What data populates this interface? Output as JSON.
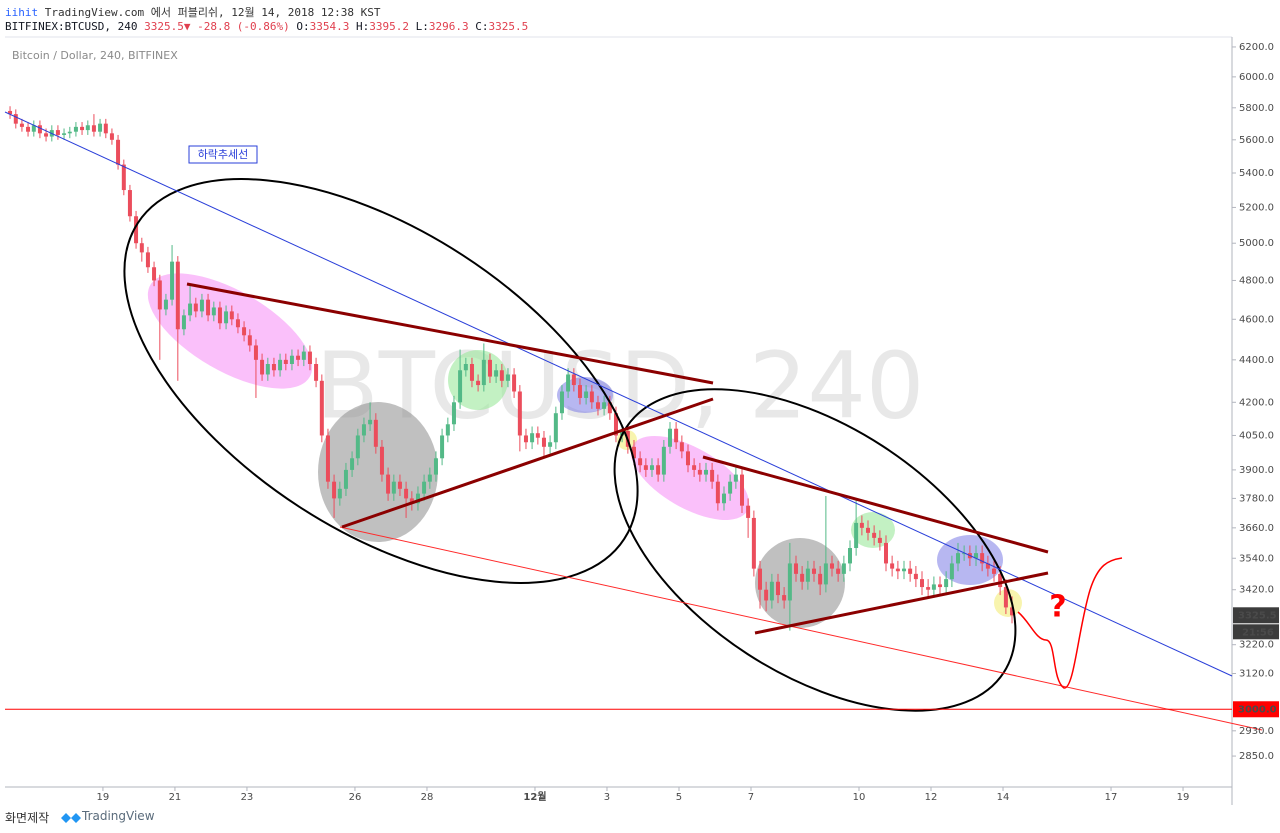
{
  "header": {
    "author": "iihit",
    "published": "TradingView.com 에서 퍼블리쉬, 12월 14, 2018 12:38 KST",
    "quote": [
      {
        "text": "BITFINEX:BTCUSD, 240 ",
        "color": "#131722"
      },
      {
        "text": "3325.5",
        "color": "#e0404f"
      },
      {
        "text": "▼",
        "color": "#e0404f"
      },
      {
        "text": " -28.8 (-0.86%) ",
        "color": "#e0404f"
      },
      {
        "text": "O:",
        "color": "#131722"
      },
      {
        "text": "3354.3",
        "color": "#e0404f"
      },
      {
        "text": " H:",
        "color": "#131722"
      },
      {
        "text": "3395.2",
        "color": "#e0404f"
      },
      {
        "text": " L:",
        "color": "#131722"
      },
      {
        "text": "3296.3",
        "color": "#e0404f"
      },
      {
        "text": " C:",
        "color": "#131722"
      },
      {
        "text": "3325.5",
        "color": "#e0404f"
      }
    ]
  },
  "chart_data": {
    "type": "candlestick",
    "title": "Bitcoin / Dollar, 240, BITFINEX",
    "watermark": "BTCUSD, 240",
    "x": [
      16.42,
      16.58,
      16.75,
      16.92,
      17.08,
      17.25,
      17.42,
      17.58,
      17.75,
      17.92,
      18.08,
      18.25,
      18.42,
      18.58,
      18.75,
      18.92,
      19.08,
      19.25,
      19.42,
      19.58,
      19.75,
      19.92,
      20.08,
      20.25,
      20.42,
      20.58,
      20.75,
      20.92,
      21.08,
      21.25,
      21.42,
      21.58,
      21.75,
      21.92,
      22.08,
      22.25,
      22.42,
      22.58,
      22.75,
      22.92,
      23.08,
      23.25,
      23.42,
      23.58,
      23.75,
      23.92,
      24.08,
      24.25,
      24.42,
      24.58,
      24.75,
      24.92,
      25.08,
      25.25,
      25.42,
      25.58,
      25.75,
      25.92,
      26.08,
      26.25,
      26.42,
      26.58,
      26.75,
      26.92,
      27.08,
      27.25,
      27.42,
      27.58,
      27.75,
      27.92,
      28.08,
      28.25,
      28.42,
      28.58,
      28.75,
      28.92,
      29.08,
      29.25,
      29.42,
      29.58,
      29.75,
      29.92,
      30.08,
      30.25,
      30.42,
      30.58,
      30.75,
      30.92,
      31.08,
      31.25,
      31.42,
      31.58,
      31.75,
      31.92,
      32.08,
      32.25,
      32.42,
      32.58,
      32.75,
      32.92,
      33.08,
      33.25,
      33.42,
      33.58,
      33.75,
      33.92,
      34.08,
      34.25,
      34.42,
      34.58,
      34.75,
      34.92,
      35.08,
      35.25,
      35.42,
      35.58,
      35.75,
      35.92,
      36.08,
      36.25,
      36.42,
      36.58,
      36.75,
      36.92,
      37.08,
      37.25,
      37.42,
      37.58,
      37.75,
      37.92,
      38.08,
      38.25,
      38.42,
      38.58,
      38.75,
      38.92,
      39.08,
      39.25,
      39.42,
      39.58,
      39.75,
      39.92,
      40.08,
      40.25,
      40.42,
      40.58,
      40.75,
      40.92,
      41.08,
      41.25,
      41.42,
      41.58,
      41.75,
      41.92,
      42.08,
      42.25,
      42.42,
      42.58,
      42.75,
      42.92,
      43.08,
      43.25,
      43.42,
      43.58,
      43.75,
      43.92,
      44.08,
      44.25
    ],
    "open": [
      5780,
      5760,
      5700,
      5680,
      5650,
      5690,
      5640,
      5620,
      5660,
      5630,
      5640,
      5650,
      5680,
      5660,
      5690,
      5650,
      5700,
      5640,
      5600,
      5450,
      5300,
      5150,
      5000,
      4950,
      4870,
      4800,
      4650,
      4700,
      4900,
      4550,
      4620,
      4680,
      4640,
      4700,
      4620,
      4660,
      4580,
      4640,
      4600,
      4560,
      4520,
      4470,
      4400,
      4330,
      4380,
      4350,
      4400,
      4380,
      4420,
      4400,
      4440,
      4380,
      4300,
      4050,
      3850,
      3780,
      3820,
      3900,
      3950,
      4050,
      4100,
      4120,
      4000,
      3880,
      3800,
      3850,
      3820,
      3780,
      3760,
      3800,
      3850,
      3880,
      3950,
      4050,
      4100,
      4200,
      4350,
      4380,
      4300,
      4280,
      4400,
      4320,
      4350,
      4300,
      4330,
      4250,
      4050,
      4020,
      4060,
      4040,
      4000,
      4020,
      4150,
      4250,
      4330,
      4280,
      4220,
      4250,
      4200,
      4170,
      4200,
      4150,
      4050,
      4070,
      4000,
      3950,
      3920,
      3900,
      3920,
      3880,
      4000,
      4080,
      4020,
      3980,
      3920,
      3900,
      3880,
      3900,
      3850,
      3760,
      3800,
      3850,
      3880,
      3750,
      3700,
      3500,
      3420,
      3380,
      3450,
      3400,
      3380,
      3520,
      3480,
      3450,
      3500,
      3480,
      3440,
      3520,
      3500,
      3480,
      3520,
      3580,
      3680,
      3660,
      3640,
      3620,
      3600,
      3520,
      3500,
      3490,
      3500,
      3480,
      3460,
      3430,
      3420,
      3440,
      3430,
      3460,
      3520,
      3560,
      3560,
      3540,
      3560,
      3520,
      3500,
      3480,
      3430,
      3354.3
    ],
    "high": [
      5810,
      5790,
      5730,
      5710,
      5720,
      5720,
      5670,
      5690,
      5690,
      5670,
      5680,
      5710,
      5710,
      5720,
      5760,
      5730,
      5730,
      5670,
      5630,
      5480,
      5330,
      5180,
      5030,
      4980,
      4900,
      4830,
      4730,
      4990,
      4930,
      4650,
      4780,
      4710,
      4730,
      4730,
      4690,
      4690,
      4670,
      4670,
      4630,
      4590,
      4550,
      4500,
      4430,
      4410,
      4410,
      4430,
      4430,
      4450,
      4450,
      4470,
      4470,
      4410,
      4330,
      4080,
      3880,
      3850,
      3930,
      3980,
      4080,
      4130,
      4200,
      4150,
      4030,
      3910,
      3880,
      3880,
      3850,
      3810,
      3830,
      3880,
      3910,
      3980,
      4080,
      4130,
      4230,
      4450,
      4410,
      4410,
      4330,
      4480,
      4430,
      4380,
      4380,
      4360,
      4360,
      4280,
      4080,
      4090,
      4090,
      4070,
      4050,
      4180,
      4280,
      4360,
      4360,
      4310,
      4280,
      4280,
      4230,
      4230,
      4230,
      4180,
      4100,
      4100,
      4030,
      3980,
      3950,
      3950,
      3950,
      4030,
      4110,
      4110,
      4050,
      4010,
      3950,
      3930,
      3930,
      3930,
      3880,
      3830,
      3880,
      3910,
      3910,
      3780,
      3730,
      3530,
      3450,
      3480,
      3480,
      3430,
      3600,
      3550,
      3510,
      3530,
      3530,
      3510,
      3790,
      3550,
      3530,
      3550,
      3610,
      3780,
      3710,
      3690,
      3670,
      3650,
      3630,
      3550,
      3530,
      3530,
      3530,
      3510,
      3490,
      3460,
      3470,
      3470,
      3490,
      3550,
      3600,
      3590,
      3590,
      3590,
      3590,
      3550,
      3530,
      3510,
      3460,
      3395.2
    ],
    "low": [
      5730,
      5670,
      5650,
      5620,
      5620,
      5610,
      5590,
      5590,
      5600,
      5600,
      5610,
      5620,
      5630,
      5630,
      5620,
      5620,
      5610,
      5570,
      5420,
      5270,
      5120,
      4970,
      4900,
      4840,
      4770,
      4400,
      4620,
      4670,
      4300,
      4520,
      4590,
      4610,
      4610,
      4590,
      4590,
      4550,
      4550,
      4570,
      4530,
      4490,
      4440,
      4220,
      4300,
      4300,
      4320,
      4320,
      4350,
      4350,
      4370,
      4370,
      4350,
      4270,
      4020,
      3820,
      3700,
      3750,
      3790,
      3870,
      3920,
      4020,
      4070,
      3970,
      3850,
      3770,
      3770,
      3790,
      3700,
      3730,
      3730,
      3770,
      3820,
      3850,
      3920,
      4020,
      4070,
      4170,
      4320,
      4270,
      4250,
      4250,
      4290,
      4290,
      4270,
      4270,
      4220,
      3980,
      3990,
      3990,
      4010,
      3950,
      3970,
      3990,
      4120,
      4220,
      4250,
      4190,
      4190,
      4170,
      4140,
      4140,
      4120,
      4020,
      4020,
      3970,
      3920,
      3890,
      3870,
      3870,
      3850,
      3850,
      3970,
      3990,
      3950,
      3890,
      3870,
      3850,
      3850,
      3820,
      3730,
      3730,
      3770,
      3820,
      3720,
      3620,
      3470,
      3350,
      3340,
      3350,
      3370,
      3350,
      3270,
      3450,
      3420,
      3420,
      3450,
      3400,
      3410,
      3470,
      3450,
      3450,
      3490,
      3550,
      3630,
      3610,
      3590,
      3570,
      3490,
      3470,
      3460,
      3460,
      3450,
      3430,
      3400,
      3390,
      3390,
      3400,
      3400,
      3430,
      3490,
      3530,
      3510,
      3510,
      3490,
      3470,
      3450,
      3400,
      3330,
      3296.3
    ],
    "close": [
      5760,
      5700,
      5680,
      5650,
      5690,
      5640,
      5620,
      5660,
      5630,
      5640,
      5650,
      5680,
      5660,
      5690,
      5650,
      5700,
      5640,
      5600,
      5450,
      5300,
      5150,
      5000,
      4950,
      4870,
      4800,
      4650,
      4700,
      4900,
      4550,
      4620,
      4680,
      4640,
      4700,
      4620,
      4660,
      4580,
      4640,
      4600,
      4560,
      4520,
      4470,
      4400,
      4330,
      4380,
      4350,
      4400,
      4380,
      4420,
      4400,
      4440,
      4380,
      4300,
      4050,
      3850,
      3780,
      3820,
      3900,
      3950,
      4050,
      4100,
      4120,
      4000,
      3880,
      3800,
      3850,
      3820,
      3780,
      3760,
      3800,
      3850,
      3880,
      3950,
      4050,
      4100,
      4200,
      4350,
      4380,
      4300,
      4280,
      4400,
      4320,
      4350,
      4300,
      4330,
      4250,
      4050,
      4020,
      4060,
      4040,
      4000,
      4020,
      4150,
      4250,
      4330,
      4280,
      4220,
      4250,
      4200,
      4170,
      4200,
      4150,
      4050,
      4070,
      4000,
      3950,
      3920,
      3900,
      3920,
      3880,
      4000,
      4080,
      4020,
      3980,
      3920,
      3900,
      3880,
      3900,
      3850,
      3760,
      3800,
      3850,
      3880,
      3750,
      3700,
      3500,
      3420,
      3380,
      3450,
      3400,
      3380,
      3520,
      3480,
      3450,
      3500,
      3480,
      3440,
      3520,
      3500,
      3480,
      3520,
      3580,
      3680,
      3660,
      3640,
      3620,
      3600,
      3520,
      3500,
      3490,
      3500,
      3480,
      3460,
      3430,
      3420,
      3440,
      3430,
      3460,
      3520,
      3560,
      3560,
      3540,
      3560,
      3520,
      3500,
      3480,
      3430,
      3354.3,
      3325.5
    ],
    "up_color": "#53b987",
    "down_color": "#eb4d5c",
    "xlim": [
      16.28,
      50.36
    ],
    "xticks": [
      19,
      21,
      23,
      26,
      28,
      {
        "value": 31,
        "label": "12월"
      },
      {
        "value": 33,
        "label": "3"
      },
      {
        "value": 35,
        "label": "5"
      },
      {
        "value": 37,
        "label": "7"
      },
      {
        "value": 40,
        "label": "10"
      },
      {
        "value": 42,
        "label": "12"
      },
      {
        "value": 44,
        "label": "14"
      },
      {
        "value": 47,
        "label": "17"
      },
      {
        "value": 49,
        "label": "19"
      }
    ],
    "ylim": [
      2755,
      6268
    ],
    "log_scale": true,
    "yticks": [
      {
        "value": 6200,
        "label": "6200.0"
      },
      {
        "value": 6000,
        "label": "6000.0"
      },
      {
        "value": 5800,
        "label": "5800.0"
      },
      {
        "value": 5600,
        "label": "5600.0"
      },
      {
        "value": 5400,
        "label": "5400.0"
      },
      {
        "value": 5200,
        "label": "5200.0"
      },
      {
        "value": 5000,
        "label": "5000.0"
      },
      {
        "value": 4800,
        "label": "4800.0"
      },
      {
        "value": 4600,
        "label": "4600.0"
      },
      {
        "value": 4400,
        "label": "4400.0"
      },
      {
        "value": 4200,
        "label": "4200.0"
      },
      {
        "value": 4050,
        "label": "4050.0"
      },
      {
        "value": 3900,
        "label": "3900.0"
      },
      {
        "value": 3780,
        "label": "3780.0"
      },
      {
        "value": 3660,
        "label": "3660.0"
      },
      {
        "value": 3540,
        "label": "3540.0"
      },
      {
        "value": 3420,
        "label": "3420.0"
      },
      {
        "value": 3220,
        "label": "3220.0"
      },
      {
        "value": 3120,
        "label": "3120.0"
      },
      {
        "value": 2930,
        "label": "2930.0"
      },
      {
        "value": 2850,
        "label": "2850.0"
      }
    ],
    "price_lines": [
      {
        "value": 3000,
        "label": "3000.0",
        "color": "#ff0000"
      }
    ],
    "last_price_color": "#3c3c3c",
    "countdown": "21:56",
    "annotations": [
      "하락추세선",
      "?"
    ]
  },
  "footer": {
    "caption": "화면제작",
    "brand": "TradingView"
  }
}
